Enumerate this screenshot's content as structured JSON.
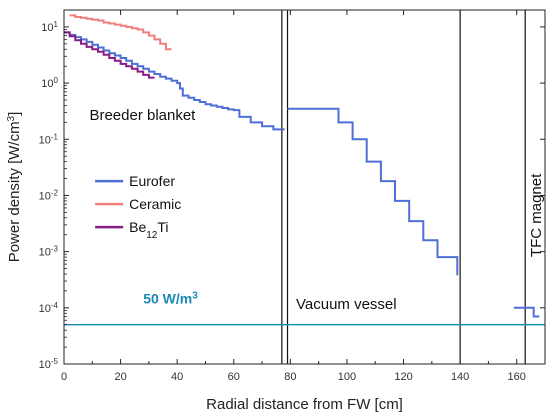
{
  "chart_data": {
    "type": "line",
    "xlabel": "Radial distance from FW [cm]",
    "ylabel": "Power density [W/cm³]",
    "ylabel_parts": {
      "main": "Power density [W/cm",
      "sup": "3",
      "end": "]"
    },
    "xlim": [
      0,
      170
    ],
    "ylim": [
      1e-05,
      20
    ],
    "yscale": "log",
    "grid": false,
    "legend_position": "left-middle",
    "x_tick_labels": [
      "0",
      "20",
      "40",
      "60",
      "80",
      "100",
      "120",
      "140",
      "160"
    ],
    "x_ticks": [
      0,
      20,
      40,
      60,
      80,
      100,
      120,
      140,
      160
    ],
    "y_ticks": [
      1e-05,
      0.0001,
      0.001,
      0.01,
      0.1,
      1,
      10
    ],
    "y_tick_labels": [
      {
        "base": "10",
        "exp": "-5"
      },
      {
        "base": "10",
        "exp": "-4"
      },
      {
        "base": "10",
        "exp": "-3"
      },
      {
        "base": "10",
        "exp": "-2"
      },
      {
        "base": "10",
        "exp": "-1"
      },
      {
        "base": "10",
        "exp": "0"
      },
      {
        "base": "10",
        "exp": "1"
      }
    ],
    "series": [
      {
        "name": "Eurofer",
        "name_parts": {
          "main": "Eurofer",
          "sub": "",
          "end": ""
        },
        "color": "#4d6fd6",
        "x": [
          0,
          2,
          4,
          6,
          8,
          10,
          12,
          14,
          16,
          18,
          20,
          22,
          24,
          26,
          28,
          30,
          32,
          34,
          36,
          38,
          40,
          41,
          42,
          44,
          46,
          48,
          50,
          52,
          54,
          56,
          58,
          60,
          62,
          66,
          70,
          74,
          78
        ],
        "y": [
          8,
          7.2,
          6.6,
          6,
          5.4,
          4.8,
          4.3,
          3.8,
          3.4,
          3.1,
          2.8,
          2.5,
          2.2,
          2,
          1.8,
          1.6,
          1.45,
          1.3,
          1.2,
          1.1,
          1.0,
          0.8,
          0.6,
          0.55,
          0.5,
          0.46,
          0.42,
          0.4,
          0.38,
          0.36,
          0.34,
          0.33,
          0.25,
          0.2,
          0.17,
          0.15,
          0.15
        ]
      },
      {
        "name": "Eurofer",
        "name_parts": {
          "main": "",
          "sub": "",
          "end": ""
        },
        "color": "#4d6fd6",
        "x": [
          79,
          85,
          92,
          97,
          102,
          107,
          112,
          117,
          122,
          127,
          132,
          139
        ],
        "y": [
          0.35,
          0.35,
          0.35,
          0.2,
          0.1,
          0.04,
          0.018,
          0.008,
          0.0035,
          0.0016,
          0.0008,
          0.00038
        ]
      },
      {
        "name": "Eurofer",
        "name_parts": {
          "main": "",
          "sub": "",
          "end": ""
        },
        "color": "#4d6fd6",
        "x": [
          159,
          163,
          166,
          168
        ],
        "y": [
          0.0001,
          0.0001,
          7e-05,
          7e-05
        ]
      },
      {
        "name": "Ceramic",
        "name_parts": {
          "main": "Ceramic",
          "sub": "",
          "end": ""
        },
        "color": "#ef7f7f",
        "x": [
          2,
          4,
          6,
          8,
          10,
          12,
          14,
          16,
          18,
          20,
          22,
          24,
          26,
          28,
          30,
          32,
          34,
          36,
          38
        ],
        "y": [
          16,
          15,
          14.5,
          14,
          13.5,
          13,
          12,
          11.5,
          11,
          10.5,
          10,
          9.5,
          9,
          8,
          7,
          6,
          5,
          4,
          4
        ]
      },
      {
        "name": "Be₁₂Ti",
        "name_parts": {
          "main": "Be",
          "sub": "12",
          "end": "Ti"
        },
        "color": "#8a1c86",
        "x": [
          0,
          2,
          4,
          6,
          8,
          10,
          12,
          14,
          16,
          18,
          20,
          22,
          24,
          26,
          28,
          30,
          32
        ],
        "y": [
          8,
          6.8,
          5.8,
          5,
          4.4,
          4,
          3.6,
          3.2,
          2.8,
          2.5,
          2.2,
          2,
          1.8,
          1.6,
          1.4,
          1.25,
          1.25
        ]
      }
    ],
    "reference_line": {
      "value": 5e-05,
      "color": "#1a8ab4",
      "label_main": "50 W/m",
      "label_sup": "3"
    },
    "vertical_lines": [
      77,
      79,
      140,
      163
    ],
    "annotations": {
      "breeder": "Breeder blanket",
      "vacuum": "Vacuum vessel",
      "tfc": "TFC magnet"
    }
  }
}
